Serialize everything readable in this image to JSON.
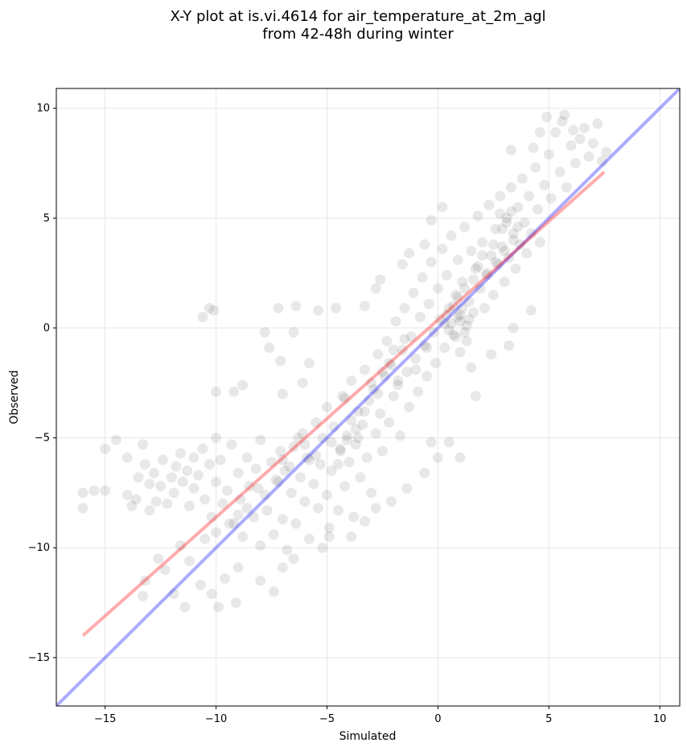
{
  "chart_data": {
    "type": "scatter",
    "title_lines": [
      "X-Y plot at is.vi.4614 for air_temperature_at_2m_agl",
      "from 42-48h during winter"
    ],
    "xlabel": "Simulated",
    "ylabel": "Observed",
    "xlim": [
      -17.2,
      10.9
    ],
    "ylim": [
      -17.2,
      10.9
    ],
    "xticks": [
      -15,
      -10,
      -5,
      0,
      5,
      10
    ],
    "yticks": [
      -15,
      -10,
      -5,
      0,
      5,
      10
    ],
    "xtick_labels": [
      "−15",
      "−10",
      "−5",
      "0",
      "5",
      "10"
    ],
    "ytick_labels": [
      "−15",
      "−10",
      "−5",
      "0",
      "5",
      "10"
    ],
    "grid": true,
    "colors": {
      "points": "#000000",
      "one_to_one_line": "#0000ff",
      "fit_line": "#ff0000",
      "grid": "#e6e6e6"
    },
    "reference_lines": [
      {
        "role": "one-to-one",
        "color": "#0000ff",
        "x": [
          -17.2,
          10.9
        ],
        "y": [
          -17.2,
          10.9
        ]
      },
      {
        "role": "fit",
        "color": "#ff0000",
        "x": [
          -16.0,
          7.5
        ],
        "y": [
          -14.0,
          7.1
        ]
      }
    ],
    "points": [
      [
        -16.0,
        -7.5
      ],
      [
        -16.0,
        -8.2
      ],
      [
        -15.5,
        -7.4
      ],
      [
        -15.0,
        -5.5
      ],
      [
        -15.0,
        -7.4
      ],
      [
        -14.5,
        -5.1
      ],
      [
        -14.0,
        -7.6
      ],
      [
        -14.0,
        -5.9
      ],
      [
        -13.8,
        -8.1
      ],
      [
        -13.6,
        -7.8
      ],
      [
        -13.5,
        -6.8
      ],
      [
        -13.3,
        -5.3
      ],
      [
        -13.2,
        -6.2
      ],
      [
        -13.0,
        -7.1
      ],
      [
        -13.0,
        -8.3
      ],
      [
        -12.8,
        -6.6
      ],
      [
        -12.7,
        -7.9
      ],
      [
        -12.5,
        -7.2
      ],
      [
        -12.4,
        -6.0
      ],
      [
        -12.2,
        -8.0
      ],
      [
        -12.0,
        -6.8
      ],
      [
        -11.9,
        -7.5
      ],
      [
        -11.8,
        -6.3
      ],
      [
        -11.6,
        -5.7
      ],
      [
        -11.5,
        -7.0
      ],
      [
        -11.3,
        -6.5
      ],
      [
        -11.2,
        -8.1
      ],
      [
        -11.0,
        -5.9
      ],
      [
        -11.0,
        -7.3
      ],
      [
        -10.8,
        -6.7
      ],
      [
        -10.6,
        -5.5
      ],
      [
        -10.5,
        -7.8
      ],
      [
        -10.3,
        -6.2
      ],
      [
        -10.2,
        -8.6
      ],
      [
        -10.0,
        -5.0
      ],
      [
        -10.0,
        -7.0
      ],
      [
        -9.8,
        -6.0
      ],
      [
        -9.7,
        -8.0
      ],
      [
        -9.5,
        -7.4
      ],
      [
        -9.3,
        -5.3
      ],
      [
        -9.2,
        -8.9
      ],
      [
        -9.0,
        -6.6
      ],
      [
        -8.9,
        -7.8
      ],
      [
        -8.8,
        -9.5
      ],
      [
        -8.6,
        -5.9
      ],
      [
        -8.5,
        -7.2
      ],
      [
        -8.3,
        -8.6
      ],
      [
        -8.2,
        -6.4
      ],
      [
        -8.0,
        -9.9
      ],
      [
        -8.0,
        -5.1
      ],
      [
        -7.8,
        -7.6
      ],
      [
        -7.7,
        -8.3
      ],
      [
        -7.5,
        -6.1
      ],
      [
        -7.4,
        -9.4
      ],
      [
        -7.2,
        -7.0
      ],
      [
        -7.1,
        -5.6
      ],
      [
        -7.0,
        -8.7
      ],
      [
        -6.9,
        -6.5
      ],
      [
        -6.8,
        -10.1
      ],
      [
        -6.6,
        -7.5
      ],
      [
        -6.5,
        -5.4
      ],
      [
        -6.4,
        -8.9
      ],
      [
        -6.2,
        -6.8
      ],
      [
        -6.1,
        -4.8
      ],
      [
        -6.0,
        -7.9
      ],
      [
        -5.9,
        -5.9
      ],
      [
        -5.8,
        -9.6
      ],
      [
        -5.6,
        -7.1
      ],
      [
        -5.5,
        -4.3
      ],
      [
        -5.4,
        -8.2
      ],
      [
        -5.3,
        -6.2
      ],
      [
        -5.2,
        -5.0
      ],
      [
        -5.0,
        -7.6
      ],
      [
        -5.0,
        -3.6
      ],
      [
        -4.9,
        -9.1
      ],
      [
        -4.8,
        -6.5
      ],
      [
        -4.7,
        -4.5
      ],
      [
        -4.5,
        -8.3
      ],
      [
        -4.4,
        -5.6
      ],
      [
        -4.3,
        -3.1
      ],
      [
        -4.2,
        -7.2
      ],
      [
        -4.1,
        -4.9
      ],
      [
        -4.0,
        -6.1
      ],
      [
        -3.9,
        -2.4
      ],
      [
        -3.8,
        -8.6
      ],
      [
        -3.7,
        -5.3
      ],
      [
        -3.6,
        -3.8
      ],
      [
        -3.5,
        -6.8
      ],
      [
        -3.4,
        -4.4
      ],
      [
        -3.3,
        -1.9
      ],
      [
        -3.2,
        -5.9
      ],
      [
        -3.1,
        -3.3
      ],
      [
        -3.0,
        -7.5
      ],
      [
        -2.9,
        -2.8
      ],
      [
        -2.8,
        -4.8
      ],
      [
        -2.7,
        -1.2
      ],
      [
        -2.6,
        -3.9
      ],
      [
        -2.5,
        -5.6
      ],
      [
        -2.4,
        -2.2
      ],
      [
        -2.3,
        -0.6
      ],
      [
        -2.2,
        -4.3
      ],
      [
        -2.1,
        -1.7
      ],
      [
        -2.0,
        -3.1
      ],
      [
        -1.9,
        0.3
      ],
      [
        -1.8,
        -2.6
      ],
      [
        -1.7,
        -4.9
      ],
      [
        -1.6,
        -1.0
      ],
      [
        -1.5,
        0.9
      ],
      [
        -1.4,
        -2.0
      ],
      [
        -1.3,
        -3.6
      ],
      [
        -1.2,
        -0.4
      ],
      [
        -1.1,
        1.6
      ],
      [
        -1.0,
        -1.4
      ],
      [
        -0.9,
        -2.9
      ],
      [
        -0.8,
        0.5
      ],
      [
        -0.7,
        2.3
      ],
      [
        -0.6,
        -0.8
      ],
      [
        -0.5,
        -2.2
      ],
      [
        -0.4,
        1.1
      ],
      [
        -0.3,
        3.0
      ],
      [
        -0.2,
        -0.2
      ],
      [
        -0.1,
        -1.6
      ],
      [
        0.0,
        1.8
      ],
      [
        0.1,
        0.4
      ],
      [
        0.2,
        3.6
      ],
      [
        0.3,
        -0.9
      ],
      [
        0.4,
        2.4
      ],
      [
        0.5,
        0.9
      ],
      [
        0.6,
        4.2
      ],
      [
        0.7,
        -0.3
      ],
      [
        0.8,
        1.5
      ],
      [
        0.9,
        3.1
      ],
      [
        1.0,
        0.3
      ],
      [
        1.1,
        2.1
      ],
      [
        1.2,
        4.6
      ],
      [
        1.3,
        -0.6
      ],
      [
        1.4,
        1.2
      ],
      [
        1.5,
        3.5
      ],
      [
        1.6,
        0.7
      ],
      [
        1.7,
        2.7
      ],
      [
        1.8,
        5.1
      ],
      [
        1.9,
        1.8
      ],
      [
        2.0,
        3.9
      ],
      [
        2.1,
        0.9
      ],
      [
        2.2,
        2.4
      ],
      [
        2.3,
        5.6
      ],
      [
        2.4,
        3.3
      ],
      [
        2.5,
        1.5
      ],
      [
        2.6,
        4.5
      ],
      [
        2.7,
        2.9
      ],
      [
        2.8,
        6.0
      ],
      [
        2.9,
        3.7
      ],
      [
        3.0,
        2.1
      ],
      [
        3.1,
        5.0
      ],
      [
        3.2,
        3.2
      ],
      [
        3.3,
        6.4
      ],
      [
        3.4,
        4.3
      ],
      [
        3.5,
        2.7
      ],
      [
        3.6,
        5.5
      ],
      [
        3.7,
        3.8
      ],
      [
        3.8,
        6.8
      ],
      [
        3.9,
        4.8
      ],
      [
        4.0,
        3.4
      ],
      [
        4.1,
        6.0
      ],
      [
        4.2,
        4.3
      ],
      [
        4.4,
        7.3
      ],
      [
        4.5,
        5.4
      ],
      [
        4.6,
        3.9
      ],
      [
        4.8,
        6.5
      ],
      [
        5.0,
        7.9
      ],
      [
        5.1,
        5.9
      ],
      [
        5.3,
        8.9
      ],
      [
        5.5,
        7.1
      ],
      [
        5.6,
        9.4
      ],
      [
        5.8,
        6.4
      ],
      [
        6.0,
        8.3
      ],
      [
        6.1,
        9.0
      ],
      [
        6.2,
        7.5
      ],
      [
        6.4,
        8.6
      ],
      [
        6.6,
        9.1
      ],
      [
        6.8,
        7.8
      ],
      [
        7.0,
        8.4
      ],
      [
        7.2,
        9.3
      ],
      [
        7.4,
        7.6
      ],
      [
        7.6,
        8.0
      ],
      [
        4.9,
        9.6
      ],
      [
        5.7,
        9.7
      ],
      [
        4.6,
        8.9
      ],
      [
        3.3,
        8.1
      ],
      [
        4.3,
        8.2
      ],
      [
        -10.3,
        0.9
      ],
      [
        -10.1,
        0.8
      ],
      [
        -10.6,
        0.5
      ],
      [
        -7.2,
        0.9
      ],
      [
        -6.4,
        1.0
      ],
      [
        -5.4,
        0.8
      ],
      [
        -4.6,
        0.9
      ],
      [
        -3.3,
        1.0
      ],
      [
        -2.8,
        1.8
      ],
      [
        -2.6,
        2.2
      ],
      [
        -0.3,
        4.9
      ],
      [
        0.2,
        5.5
      ],
      [
        -0.6,
        3.8
      ],
      [
        -1.3,
        3.4
      ],
      [
        -1.6,
        2.9
      ],
      [
        -7.8,
        -0.2
      ],
      [
        -7.6,
        -0.9
      ],
      [
        -6.5,
        -0.2
      ],
      [
        -5.8,
        -1.6
      ],
      [
        -7.1,
        -1.5
      ],
      [
        -8.8,
        -2.6
      ],
      [
        -9.2,
        -2.9
      ],
      [
        -10.0,
        -2.9
      ],
      [
        -7.0,
        -3.0
      ],
      [
        -6.1,
        -2.5
      ],
      [
        -11.6,
        -9.9
      ],
      [
        -11.2,
        -10.6
      ],
      [
        -10.7,
        -11.7
      ],
      [
        -10.2,
        -12.1
      ],
      [
        -9.9,
        -12.7
      ],
      [
        -9.1,
        -12.5
      ],
      [
        -11.9,
        -12.1
      ],
      [
        -12.3,
        -11.0
      ],
      [
        -11.4,
        -12.7
      ],
      [
        -13.2,
        -11.5
      ],
      [
        -13.3,
        -12.2
      ],
      [
        -12.6,
        -10.5
      ],
      [
        -9.6,
        -11.4
      ],
      [
        -9.0,
        -10.9
      ],
      [
        -8.0,
        -11.5
      ],
      [
        -7.4,
        -12.0
      ],
      [
        -7.0,
        -10.9
      ],
      [
        -6.5,
        -10.5
      ],
      [
        -5.2,
        -10.0
      ],
      [
        -4.9,
        -9.5
      ],
      [
        -3.9,
        -9.5
      ],
      [
        -3.3,
        -8.8
      ],
      [
        -2.8,
        -8.2
      ],
      [
        -2.1,
        -7.9
      ],
      [
        -1.4,
        -7.3
      ],
      [
        -0.6,
        -6.6
      ],
      [
        0.0,
        -5.9
      ],
      [
        1.0,
        -5.9
      ],
      [
        0.5,
        -5.2
      ],
      [
        -0.3,
        -5.2
      ],
      [
        1.7,
        -3.1
      ],
      [
        2.4,
        -1.2
      ],
      [
        3.2,
        -0.8
      ],
      [
        3.4,
        0.0
      ],
      [
        4.2,
        0.8
      ],
      [
        1.5,
        -1.8
      ],
      [
        1.0,
        -1.1
      ],
      [
        1.2,
        -0.2
      ],
      [
        0.9,
        0.5
      ],
      [
        0.6,
        0.2
      ],
      [
        0.8,
        -0.4
      ],
      [
        1.1,
        0.9
      ],
      [
        0.4,
        0.6
      ],
      [
        0.7,
        1.0
      ],
      [
        1.3,
        0.1
      ],
      [
        0.5,
        -0.1
      ],
      [
        0.9,
        1.4
      ],
      [
        0.3,
        0.2
      ],
      [
        1.0,
        0.6
      ],
      [
        1.4,
        0.4
      ],
      [
        -0.5,
        -0.9
      ],
      [
        -1.0,
        -1.9
      ],
      [
        -1.8,
        -2.4
      ],
      [
        -2.2,
        -1.6
      ],
      [
        -2.7,
        -3.0
      ],
      [
        -3.3,
        -3.8
      ],
      [
        -3.7,
        -4.6
      ],
      [
        -4.1,
        -5.1
      ],
      [
        -3.9,
        -4.2
      ],
      [
        -3.6,
        -5.0
      ],
      [
        -4.4,
        -5.5
      ],
      [
        -4.8,
        -5.2
      ],
      [
        -5.5,
        -5.8
      ],
      [
        -6.0,
        -5.3
      ],
      [
        -6.7,
        -6.3
      ],
      [
        -7.3,
        -6.9
      ],
      [
        -8.1,
        -7.3
      ],
      [
        -8.6,
        -8.2
      ],
      [
        -9.0,
        -8.5
      ],
      [
        -9.4,
        -8.9
      ],
      [
        -10.0,
        -9.3
      ],
      [
        -10.5,
        -9.6
      ],
      [
        -2.5,
        -2.0
      ],
      [
        -2.0,
        -1.0
      ],
      [
        -1.5,
        -0.5
      ],
      [
        2.2,
        2.5
      ],
      [
        2.6,
        3.0
      ],
      [
        3.0,
        3.5
      ],
      [
        3.4,
        4.0
      ],
      [
        2.9,
        4.5
      ],
      [
        3.1,
        4.8
      ],
      [
        2.5,
        3.8
      ],
      [
        3.6,
        4.6
      ],
      [
        2.8,
        5.2
      ],
      [
        3.3,
        5.3
      ],
      [
        2.0,
        3.3
      ],
      [
        1.8,
        2.8
      ],
      [
        1.6,
        2.2
      ],
      [
        1.2,
        1.8
      ],
      [
        -4.2,
        -3.2
      ],
      [
        -3.0,
        -2.5
      ],
      [
        -5.8,
        -6.0
      ],
      [
        -6.3,
        -5.0
      ],
      [
        -7.0,
        -6.0
      ],
      [
        -4.5,
        -6.2
      ]
    ]
  }
}
